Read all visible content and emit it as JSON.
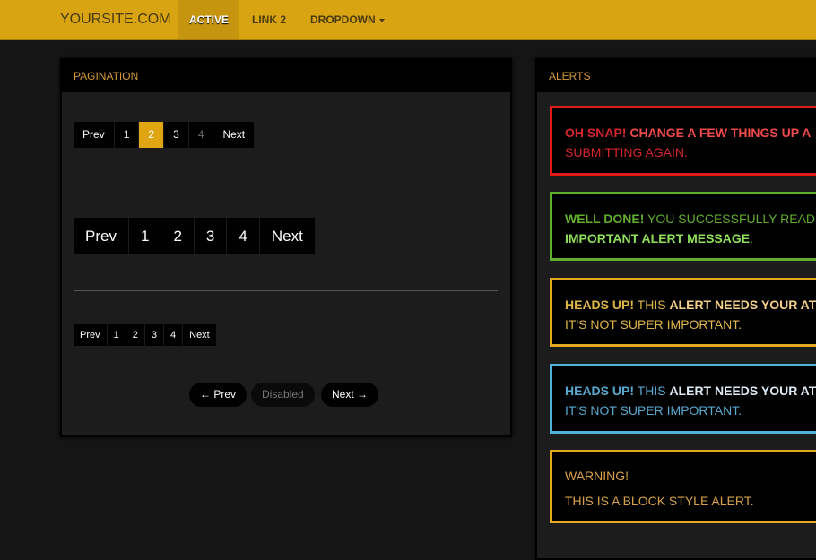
{
  "navbar": {
    "brand": "YOURSITE.COM",
    "links": [
      {
        "label": "ACTIVE",
        "active": true
      },
      {
        "label": "LINK 2"
      },
      {
        "label": "DROPDOWN"
      }
    ]
  },
  "pagination_panel": {
    "title": "PAGINATION",
    "large": {
      "items": [
        "Prev",
        "1",
        "2",
        "3",
        "4",
        "Next"
      ],
      "active": "2",
      "disabled": "4"
    },
    "xlarge": {
      "items": [
        "Prev",
        "1",
        "2",
        "3",
        "4",
        "Next"
      ]
    },
    "small": {
      "items": [
        "Prev",
        "1",
        "2",
        "3",
        "4",
        "Next"
      ]
    },
    "pager": {
      "prev": "← Prev",
      "disabled": "Disabled",
      "next": "Next →"
    }
  },
  "alerts_panel": {
    "title": "ALERTS",
    "alerts": [
      {
        "type": "error",
        "color": "#e01919",
        "strong": "OH SNAP!",
        "bold2": "CHANGE A FEW THINGS UP A",
        "line2": "SUBMITTING AGAIN."
      },
      {
        "type": "success",
        "color": "#5fae2d",
        "strong": "WELL DONE!",
        "text": "YOU SUCCESSFULLY READ",
        "bold2": "IMPORTANT ALERT MESSAGE",
        "end": "."
      },
      {
        "type": "warning",
        "color": "#e0a91e",
        "strong": "HEADS UP!",
        "text": "THIS",
        "bold2": "ALERT NEEDS YOUR AT",
        "line2": "IT'S NOT SUPER IMPORTANT."
      },
      {
        "type": "info",
        "color": "#4fb2d9",
        "strong": "HEADS UP!",
        "text": "THIS",
        "bold2": "ALERT NEEDS YOUR AT",
        "line2": "IT'S NOT SUPER IMPORTANT."
      },
      {
        "type": "block",
        "color": "#e0a91e",
        "heading": "WARNING!",
        "text": "THIS IS A BLOCK STYLE ALERT."
      }
    ]
  }
}
